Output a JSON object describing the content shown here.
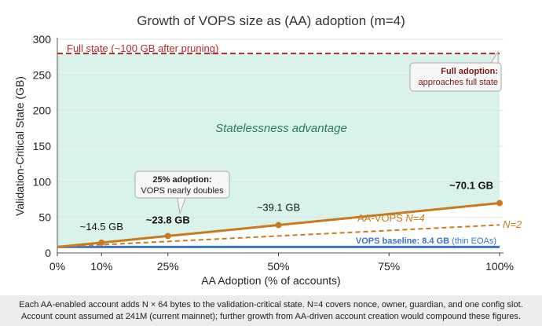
{
  "chart_data": {
    "type": "line",
    "title": "Growth of VOPS size as (AA) adoption (m=4)",
    "xlabel": "AA Adoption (% of accounts)",
    "ylabel": "Validation-Critical State (GB)",
    "xlim": [
      0,
      100
    ],
    "ylim": [
      0,
      300
    ],
    "xticks": [
      0,
      10,
      25,
      50,
      75,
      100
    ],
    "xtick_labels": [
      "0%",
      "10%",
      "25%",
      "50%",
      "75%",
      "100%"
    ],
    "yticks": [
      0,
      50,
      100,
      150,
      200,
      250,
      300
    ],
    "grid": true,
    "series": [
      {
        "name": "AA-VOPS N=4",
        "color": "#c97a1e",
        "style": "solid",
        "x": [
          0,
          10,
          25,
          50,
          100
        ],
        "y": [
          8.4,
          14.5,
          23.8,
          39.1,
          70.1
        ]
      },
      {
        "name": "N=2",
        "color": "#c97a1e",
        "style": "dashed",
        "x": [
          0,
          100
        ],
        "y": [
          8.4,
          39.3
        ]
      },
      {
        "name": "VOPS baseline",
        "color": "#3b73c9",
        "style": "solid",
        "x": [
          0,
          100
        ],
        "y": [
          8.4,
          8.4
        ]
      }
    ],
    "full_state": {
      "value": 280,
      "label": "Full state (~100 GB after pruning)",
      "color": "#b22a2a"
    },
    "region_label": "Statelessness advantage",
    "point_labels": [
      {
        "x": 10,
        "text": "~14.5 GB",
        "bold": false
      },
      {
        "x": 25,
        "text": "~23.8 GB",
        "bold": true
      },
      {
        "x": 50,
        "text": "~39.1 GB",
        "bold": false
      },
      {
        "x": 100,
        "text": "~70.1 GB",
        "bold": true
      }
    ],
    "series_labels": {
      "n4_prefix": "AA-VOPS ",
      "n4": "N=4",
      "n2": "N=2",
      "baseline_bold": "VOPS baseline: 8.4 GB",
      "baseline_rest": " (thin EOAs)"
    },
    "callouts": [
      {
        "title": "25% adoption:",
        "text": "VOPS nearly doubles"
      },
      {
        "title": "Full adoption:",
        "text": "approaches full state"
      }
    ]
  },
  "caption": {
    "line1": "Each AA-enabled account adds N × 64 bytes to the validation-critical state. N=4 covers nonce, owner, guardian, and one config slot.",
    "line2": "Account count assumed at 241M (current mainnet); further growth from AA-driven account creation would compound these figures."
  }
}
